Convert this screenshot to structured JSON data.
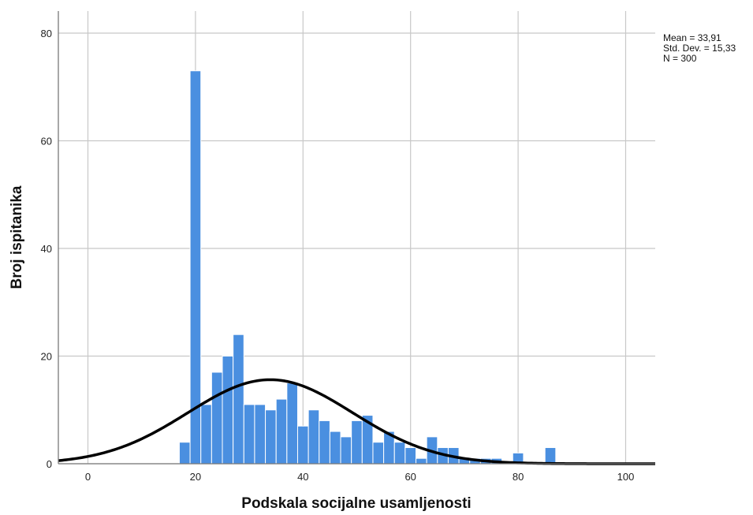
{
  "chart_data": {
    "type": "bar",
    "subtype": "histogram",
    "xlabel": "Podskala socijalne usamljenosti",
    "ylabel": "Broj ispitanika",
    "xlim": [
      -5.5,
      105.5
    ],
    "ylim": [
      0,
      80
    ],
    "x_ticks": [
      "0",
      "20",
      "40",
      "60",
      "80",
      "100"
    ],
    "y_ticks": [
      "0",
      "20",
      "40",
      "60",
      "80"
    ],
    "grid": true,
    "bin_width": 2,
    "bins": [
      {
        "x": 18,
        "value": 4
      },
      {
        "x": 20,
        "value": 73
      },
      {
        "x": 22,
        "value": 11
      },
      {
        "x": 24,
        "value": 17
      },
      {
        "x": 26,
        "value": 20
      },
      {
        "x": 28,
        "value": 24
      },
      {
        "x": 30,
        "value": 11
      },
      {
        "x": 32,
        "value": 11
      },
      {
        "x": 34,
        "value": 10
      },
      {
        "x": 36,
        "value": 12
      },
      {
        "x": 38,
        "value": 15
      },
      {
        "x": 40,
        "value": 7
      },
      {
        "x": 42,
        "value": 10
      },
      {
        "x": 44,
        "value": 8
      },
      {
        "x": 46,
        "value": 6
      },
      {
        "x": 48,
        "value": 5
      },
      {
        "x": 50,
        "value": 8
      },
      {
        "x": 52,
        "value": 9
      },
      {
        "x": 54,
        "value": 4
      },
      {
        "x": 56,
        "value": 6
      },
      {
        "x": 58,
        "value": 4
      },
      {
        "x": 60,
        "value": 3
      },
      {
        "x": 62,
        "value": 1
      },
      {
        "x": 64,
        "value": 5
      },
      {
        "x": 66,
        "value": 3
      },
      {
        "x": 68,
        "value": 3
      },
      {
        "x": 70,
        "value": 1
      },
      {
        "x": 72,
        "value": 1
      },
      {
        "x": 74,
        "value": 1
      },
      {
        "x": 76,
        "value": 1
      },
      {
        "x": 80,
        "value": 2
      },
      {
        "x": 86,
        "value": 3
      }
    ],
    "normal_curve": {
      "mean": 33.91,
      "std": 15.33,
      "n": 300
    },
    "stats_box": {
      "placement": "top-right",
      "lines": [
        "Mean = 33,91",
        "Std. Dev. = 15,33",
        "N = 300"
      ]
    },
    "colors": {
      "bar": "#4a8fe0",
      "bar_edge": "#ffffff",
      "curve": "#000000",
      "grid": "#c8c8c8",
      "axis": "#7a7a7a"
    }
  }
}
